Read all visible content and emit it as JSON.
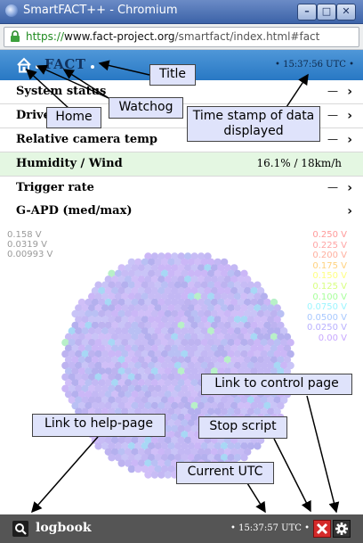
{
  "browser": {
    "window_title": "SmartFACT++ - Chromium",
    "url_scheme": "https://",
    "url_host": "www.fact-project.org",
    "url_path": "/smartfact/index.html#fact"
  },
  "header": {
    "brand": "FACT",
    "timestamp": "15:37:56 UTC"
  },
  "rows": [
    {
      "label": "System status",
      "value": "—"
    },
    {
      "label": "Drive",
      "value": "—"
    },
    {
      "label": "Relative camera temp",
      "value": "—"
    },
    {
      "label": "Humidity / Wind",
      "value": "16.1% / 18km/h"
    },
    {
      "label": "Trigger rate",
      "value": "—"
    },
    {
      "label": "G-APD (med/max)",
      "value": ""
    }
  ],
  "camera": {
    "left_scale": [
      "0.158 V",
      "0.0319 V",
      "0.00993 V"
    ],
    "right_scale": [
      "0.250 V",
      "0.225 V",
      "0.200 V",
      "0.175 V",
      "0.150 V",
      "0.125 V",
      "0.100 V",
      "0.0750 V",
      "0.0500 V",
      "0.0250 V",
      "0.00 V"
    ],
    "right_scale_colors": [
      "#ff9a9a",
      "#ffa5a5",
      "#ffb0a0",
      "#ffd27f",
      "#ffff80",
      "#d8ff80",
      "#a8ff9c",
      "#9cf5ff",
      "#a8c8ff",
      "#b8b0ff",
      "#c8a8ff"
    ]
  },
  "footer": {
    "logbook_label": "logbook",
    "utc_time": "15:37:57 UTC"
  },
  "annotations": {
    "title": "Title",
    "watchdog": "Watchog",
    "home": "Home",
    "timestamp": "Time stamp of data displayed",
    "control": "Link to control page",
    "help": "Link to help-page",
    "stop": "Stop script",
    "utc": "Current UTC"
  },
  "colors": {
    "header_blue": "#2878c4",
    "green_row": "#e4f7e2",
    "stop_red": "#d42a2a"
  }
}
